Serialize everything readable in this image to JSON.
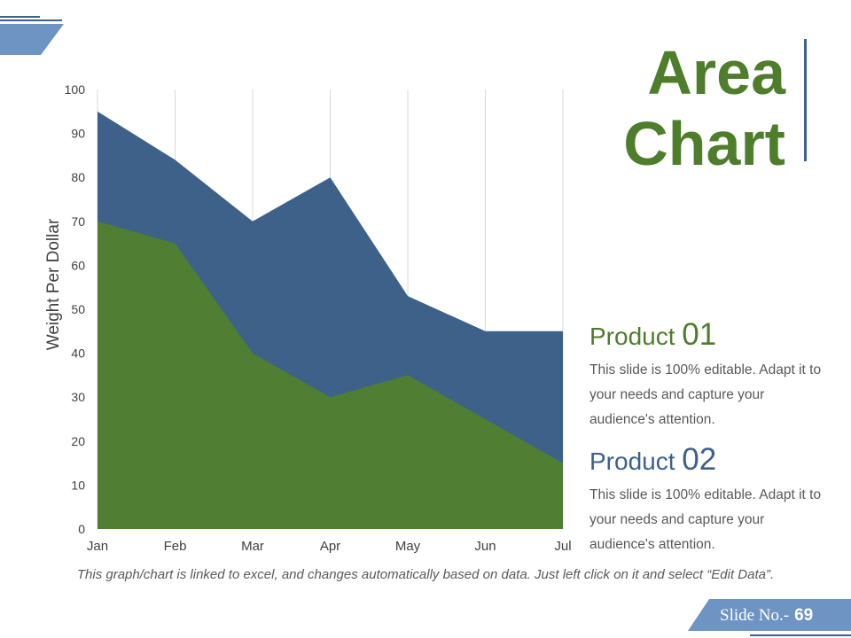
{
  "title": {
    "line1": "Area",
    "line2": "Chart"
  },
  "chart_data": {
    "type": "area",
    "stacked": false,
    "categories": [
      "Jan",
      "Feb",
      "Mar",
      "Apr",
      "May",
      "Jun",
      "Jul"
    ],
    "series": [
      {
        "name": "Product 02",
        "color": "#3d6189",
        "values": [
          95,
          84,
          70,
          80,
          53,
          45,
          45
        ]
      },
      {
        "name": "Product 01",
        "color": "#507e32",
        "values": [
          70,
          65,
          40,
          30,
          35,
          25,
          15
        ]
      }
    ],
    "ylabel": "Weight Per Dollar",
    "xlabel": "",
    "ylim": [
      0,
      100
    ],
    "yticks": [
      0,
      10,
      20,
      30,
      40,
      50,
      60,
      70,
      80,
      90,
      100
    ],
    "grid": "vertical"
  },
  "products": [
    {
      "title": "Product",
      "number": "01",
      "color": "#4e7d2c",
      "description": "This slide is 100% editable. Adapt it to your needs and capture your audience's attention."
    },
    {
      "title": "Product",
      "number": "02",
      "color": "#3d6189",
      "description": "This slide is 100% editable. Adapt it to your needs and capture your audience's attention."
    }
  ],
  "footnote": "This graph/chart is linked to excel, and changes automatically based on data. Just left click on it and select “Edit Data”.",
  "slide": {
    "label": "Slide No.-",
    "number": "69"
  },
  "colors": {
    "green": "#4e7d2c",
    "blue": "#3d6189",
    "light_blue": "#7096c4",
    "grid": "#d9d9d9"
  }
}
